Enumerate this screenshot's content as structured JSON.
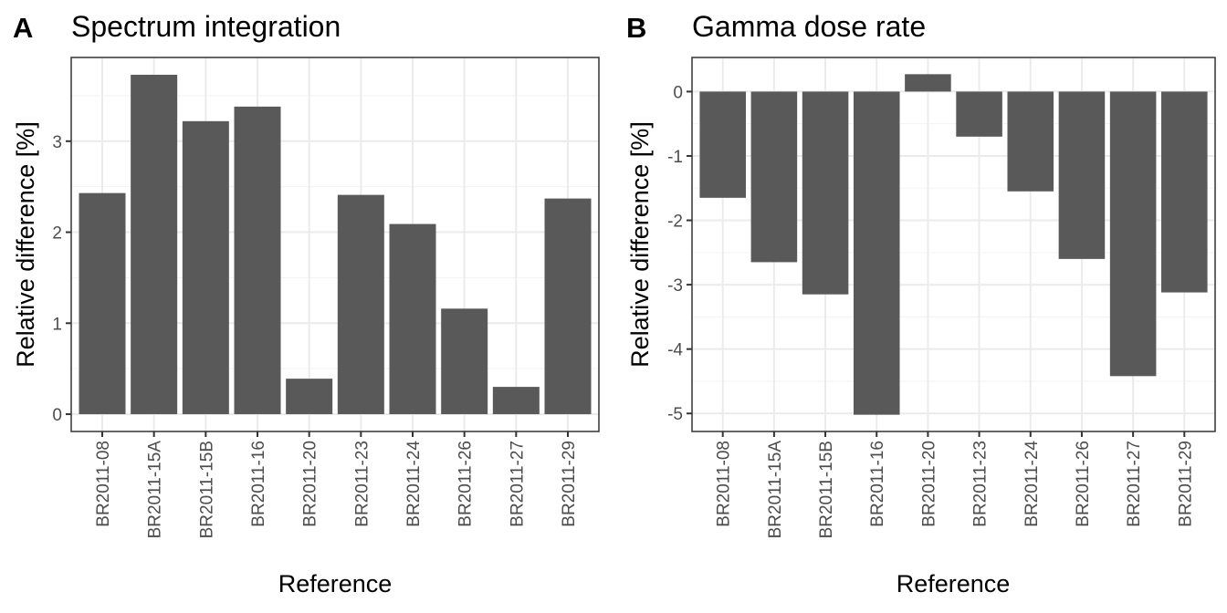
{
  "chart_data": [
    {
      "type": "bar",
      "tag": "A",
      "title": "Spectrum integration",
      "xlabel": "Reference",
      "ylabel": "Relative difference [%]",
      "categories": [
        "BR2011-08",
        "BR2011-15A",
        "BR2011-15B",
        "BR2011-16",
        "BR2011-20",
        "BR2011-23",
        "BR2011-24",
        "BR2011-26",
        "BR2011-27",
        "BR2011-29"
      ],
      "values": [
        2.43,
        3.73,
        3.22,
        3.38,
        0.39,
        2.41,
        2.09,
        1.16,
        0.3,
        2.37
      ],
      "ylim": [
        -0.19,
        3.92
      ],
      "yticks": [
        0,
        1,
        2,
        3
      ],
      "grid": true,
      "bar_color": "#595959"
    },
    {
      "type": "bar",
      "tag": "B",
      "title": "Gamma dose rate",
      "xlabel": "Reference",
      "ylabel": "Relative difference [%]",
      "categories": [
        "BR2011-08",
        "BR2011-15A",
        "BR2011-15B",
        "BR2011-16",
        "BR2011-20",
        "BR2011-23",
        "BR2011-24",
        "BR2011-26",
        "BR2011-27",
        "BR2011-29"
      ],
      "values": [
        -1.65,
        -2.65,
        -3.15,
        -5.02,
        0.27,
        -0.7,
        -1.55,
        -2.6,
        -4.42,
        -3.12
      ],
      "ylim": [
        -5.28,
        0.53
      ],
      "yticks": [
        0,
        -1,
        -2,
        -3,
        -4,
        -5
      ],
      "grid": true,
      "bar_color": "#595959"
    }
  ]
}
